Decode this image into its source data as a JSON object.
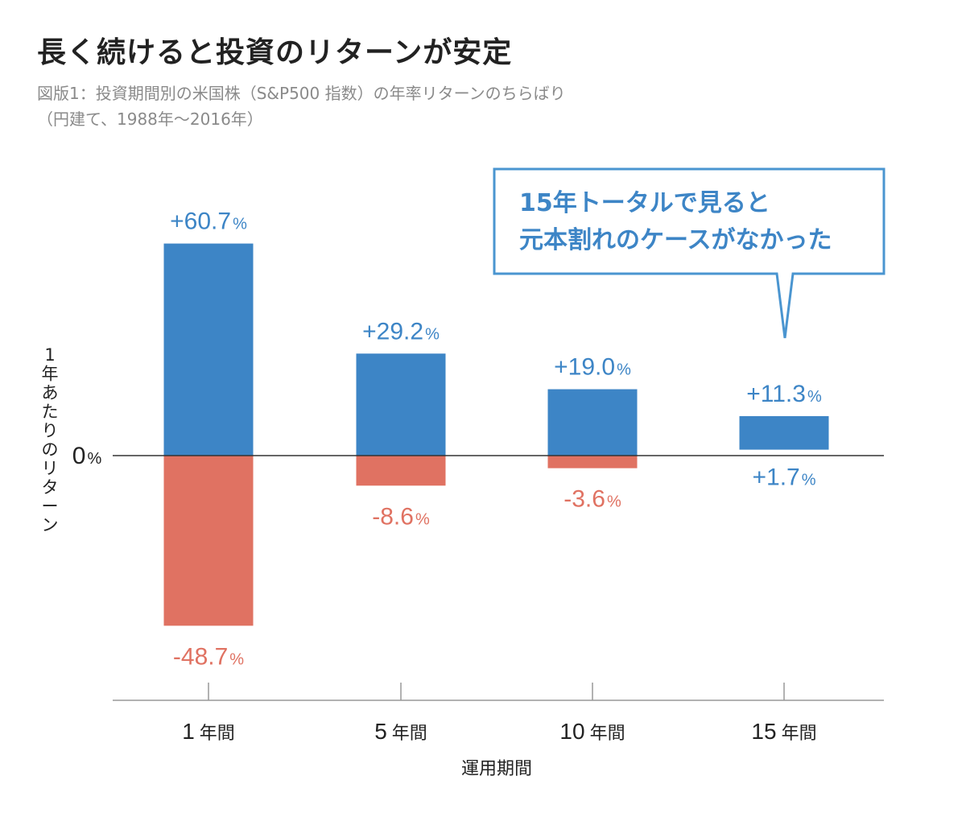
{
  "title": "長く続けると投資のリターンが安定",
  "subtitle_lines": [
    "図版1：投資期間別の米国株（S&P500 指数）の年率リターンのちらばり",
    "（円建て、1988年〜2016年）"
  ],
  "colors": {
    "positive": "#3d85c6",
    "negative": "#e07262",
    "axis": "#555555",
    "callout_border": "#4a95d0",
    "callout_text": "#3d85c6"
  },
  "callout": {
    "lines": [
      "15年トータルで見ると",
      "元本割れのケースがなかった"
    ]
  },
  "chart_data": {
    "type": "bar",
    "title": "長く続けると投資のリターンが安定",
    "xlabel": "運用期間",
    "ylabel": "1年あたりのリターン",
    "zero_label": "0%",
    "ylim": [
      -55,
      65
    ],
    "categories": [
      {
        "num": "1",
        "unit": "年間"
      },
      {
        "num": "5",
        "unit": "年間"
      },
      {
        "num": "10",
        "unit": "年間"
      },
      {
        "num": "15",
        "unit": "年間"
      }
    ],
    "ranges": [
      {
        "max": 60.7,
        "min": -48.7,
        "max_label": "+60.7",
        "min_label": "-48.7"
      },
      {
        "max": 29.2,
        "min": -8.6,
        "max_label": "+29.2",
        "min_label": "-8.6"
      },
      {
        "max": 19.0,
        "min": -3.6,
        "max_label": "+19.0",
        "min_label": "-3.6"
      },
      {
        "max": 11.3,
        "min": 1.7,
        "max_label": "+11.3",
        "min_label": "+1.7"
      }
    ],
    "percent_suffix": "%"
  }
}
